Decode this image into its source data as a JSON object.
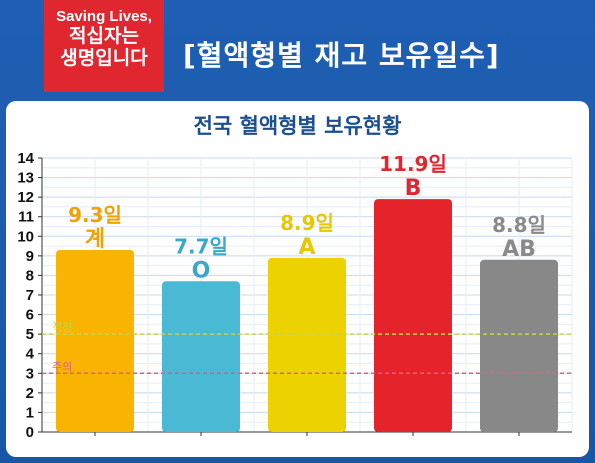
{
  "header": {
    "logo_en": "Saving Lives,",
    "logo_ko_line1": "적십자는",
    "logo_ko_line2": "생명입니다",
    "headline": "[혈액형별 재고 보유일수]"
  },
  "chart_data": {
    "type": "bar",
    "title": "전국 혈액형별 보유현황",
    "categories": [
      "계",
      "O",
      "A",
      "B",
      "AB"
    ],
    "values": [
      9.3,
      7.7,
      8.9,
      11.9,
      8.8
    ],
    "value_labels": [
      "9.3일",
      "7.7일",
      "8.9일",
      "11.9일",
      "8.8일"
    ],
    "bar_colors": [
      "#f8b400",
      "#4ab9d4",
      "#ecd200",
      "#e4232a",
      "#888888"
    ],
    "label_colors": [
      "#f2a100",
      "#3aa9c9",
      "#e6c700",
      "#e0262f",
      "#8a8a8a"
    ],
    "ylim": [
      0,
      14
    ],
    "yticks": [
      "0",
      "1",
      "2",
      "3",
      "4",
      "5",
      "6",
      "7",
      "8",
      "9",
      "10",
      "11",
      "12",
      "13",
      "14"
    ],
    "grid": true,
    "reference_lines": [
      {
        "name": "적정",
        "value": 5,
        "color": "#c8d44a"
      },
      {
        "name": "주의",
        "value": 3,
        "color": "#e06080"
      }
    ]
  }
}
